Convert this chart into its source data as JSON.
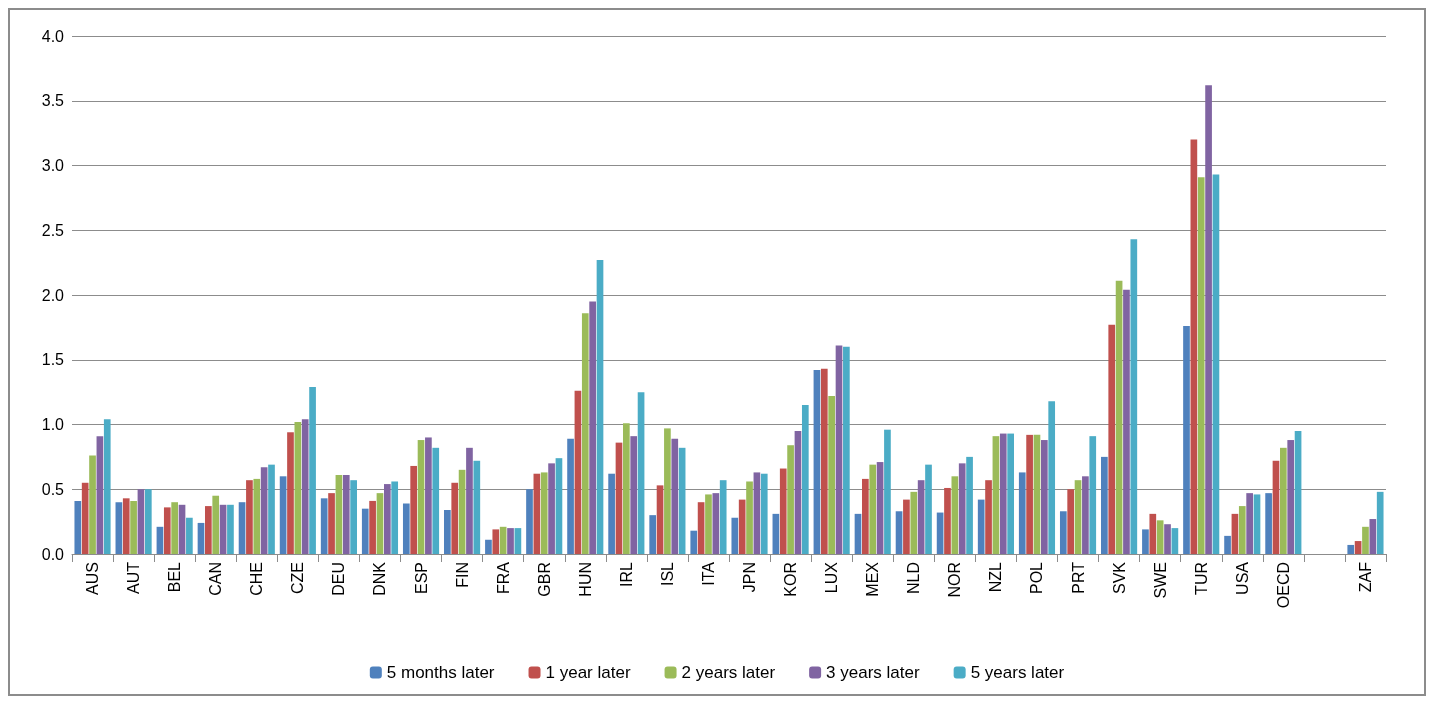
{
  "chart_data": {
    "type": "bar",
    "categories": [
      "AUS",
      "AUT",
      "BEL",
      "CAN",
      "CHE",
      "CZE",
      "DEU",
      "DNK",
      "ESP",
      "FIN",
      "FRA",
      "GBR",
      "HUN",
      "IRL",
      "ISL",
      "ITA",
      "JPN",
      "KOR",
      "LUX",
      "MEX",
      "NLD",
      "NOR",
      "NZL",
      "POL",
      "PRT",
      "SVK",
      "SWE",
      "TUR",
      "USA",
      "OECD",
      null,
      "ZAF"
    ],
    "series": [
      {
        "name": "5 months later",
        "color": "#4f81bd",
        "values": [
          0.41,
          0.4,
          0.21,
          0.24,
          0.4,
          0.6,
          0.43,
          0.35,
          0.39,
          0.34,
          0.11,
          0.5,
          0.89,
          0.62,
          0.3,
          0.18,
          0.28,
          0.31,
          1.42,
          0.31,
          0.33,
          0.32,
          0.42,
          0.63,
          0.33,
          0.75,
          0.19,
          1.76,
          0.14,
          0.47,
          null,
          0.07
        ]
      },
      {
        "name": "1 year later",
        "color": "#c0504d",
        "values": [
          0.55,
          0.43,
          0.36,
          0.37,
          0.57,
          0.94,
          0.47,
          0.41,
          0.68,
          0.55,
          0.19,
          0.62,
          1.26,
          0.86,
          0.53,
          0.4,
          0.42,
          0.66,
          1.43,
          0.58,
          0.42,
          0.51,
          0.57,
          0.92,
          0.5,
          1.77,
          0.31,
          3.2,
          0.31,
          0.72,
          null,
          0.1
        ]
      },
      {
        "name": "2 years later",
        "color": "#9bbb59",
        "values": [
          0.76,
          0.41,
          0.4,
          0.45,
          0.58,
          1.02,
          0.61,
          0.47,
          0.88,
          0.65,
          0.21,
          0.63,
          1.86,
          1.01,
          0.97,
          0.46,
          0.56,
          0.84,
          1.22,
          0.69,
          0.48,
          0.6,
          0.91,
          0.92,
          0.57,
          2.11,
          0.26,
          2.91,
          0.37,
          0.82,
          null,
          0.21
        ]
      },
      {
        "name": "3 years later",
        "color": "#8064a2",
        "values": [
          0.91,
          0.5,
          0.38,
          0.38,
          0.67,
          1.04,
          0.61,
          0.54,
          0.9,
          0.82,
          0.2,
          0.7,
          1.95,
          0.91,
          0.89,
          0.47,
          0.63,
          0.95,
          1.61,
          0.71,
          0.57,
          0.7,
          0.93,
          0.88,
          0.6,
          2.04,
          0.23,
          3.62,
          0.47,
          0.88,
          null,
          0.27
        ]
      },
      {
        "name": "5 years later",
        "color": "#4bacc6",
        "values": [
          1.04,
          0.5,
          0.28,
          0.38,
          0.69,
          1.29,
          0.57,
          0.56,
          0.82,
          0.72,
          0.2,
          0.74,
          2.27,
          1.25,
          0.82,
          0.57,
          0.62,
          1.15,
          1.6,
          0.96,
          0.69,
          0.75,
          0.93,
          1.18,
          0.91,
          2.43,
          0.2,
          2.93,
          0.46,
          0.95,
          null,
          0.48
        ]
      }
    ],
    "ylim": [
      0,
      4
    ],
    "yticks": [
      {
        "value": 0,
        "label": "0.0"
      },
      {
        "value": 0.5,
        "label": "0.5"
      },
      {
        "value": 1,
        "label": "1.0"
      },
      {
        "value": 1.5,
        "label": "1.5"
      },
      {
        "value": 2,
        "label": "2.0"
      },
      {
        "value": 2.5,
        "label": "2.5"
      },
      {
        "value": 3,
        "label": "3.0"
      },
      {
        "value": 3.5,
        "label": "3.5"
      },
      {
        "value": 4,
        "label": "4.0"
      }
    ],
    "grid": "y",
    "legend": "bottom"
  }
}
